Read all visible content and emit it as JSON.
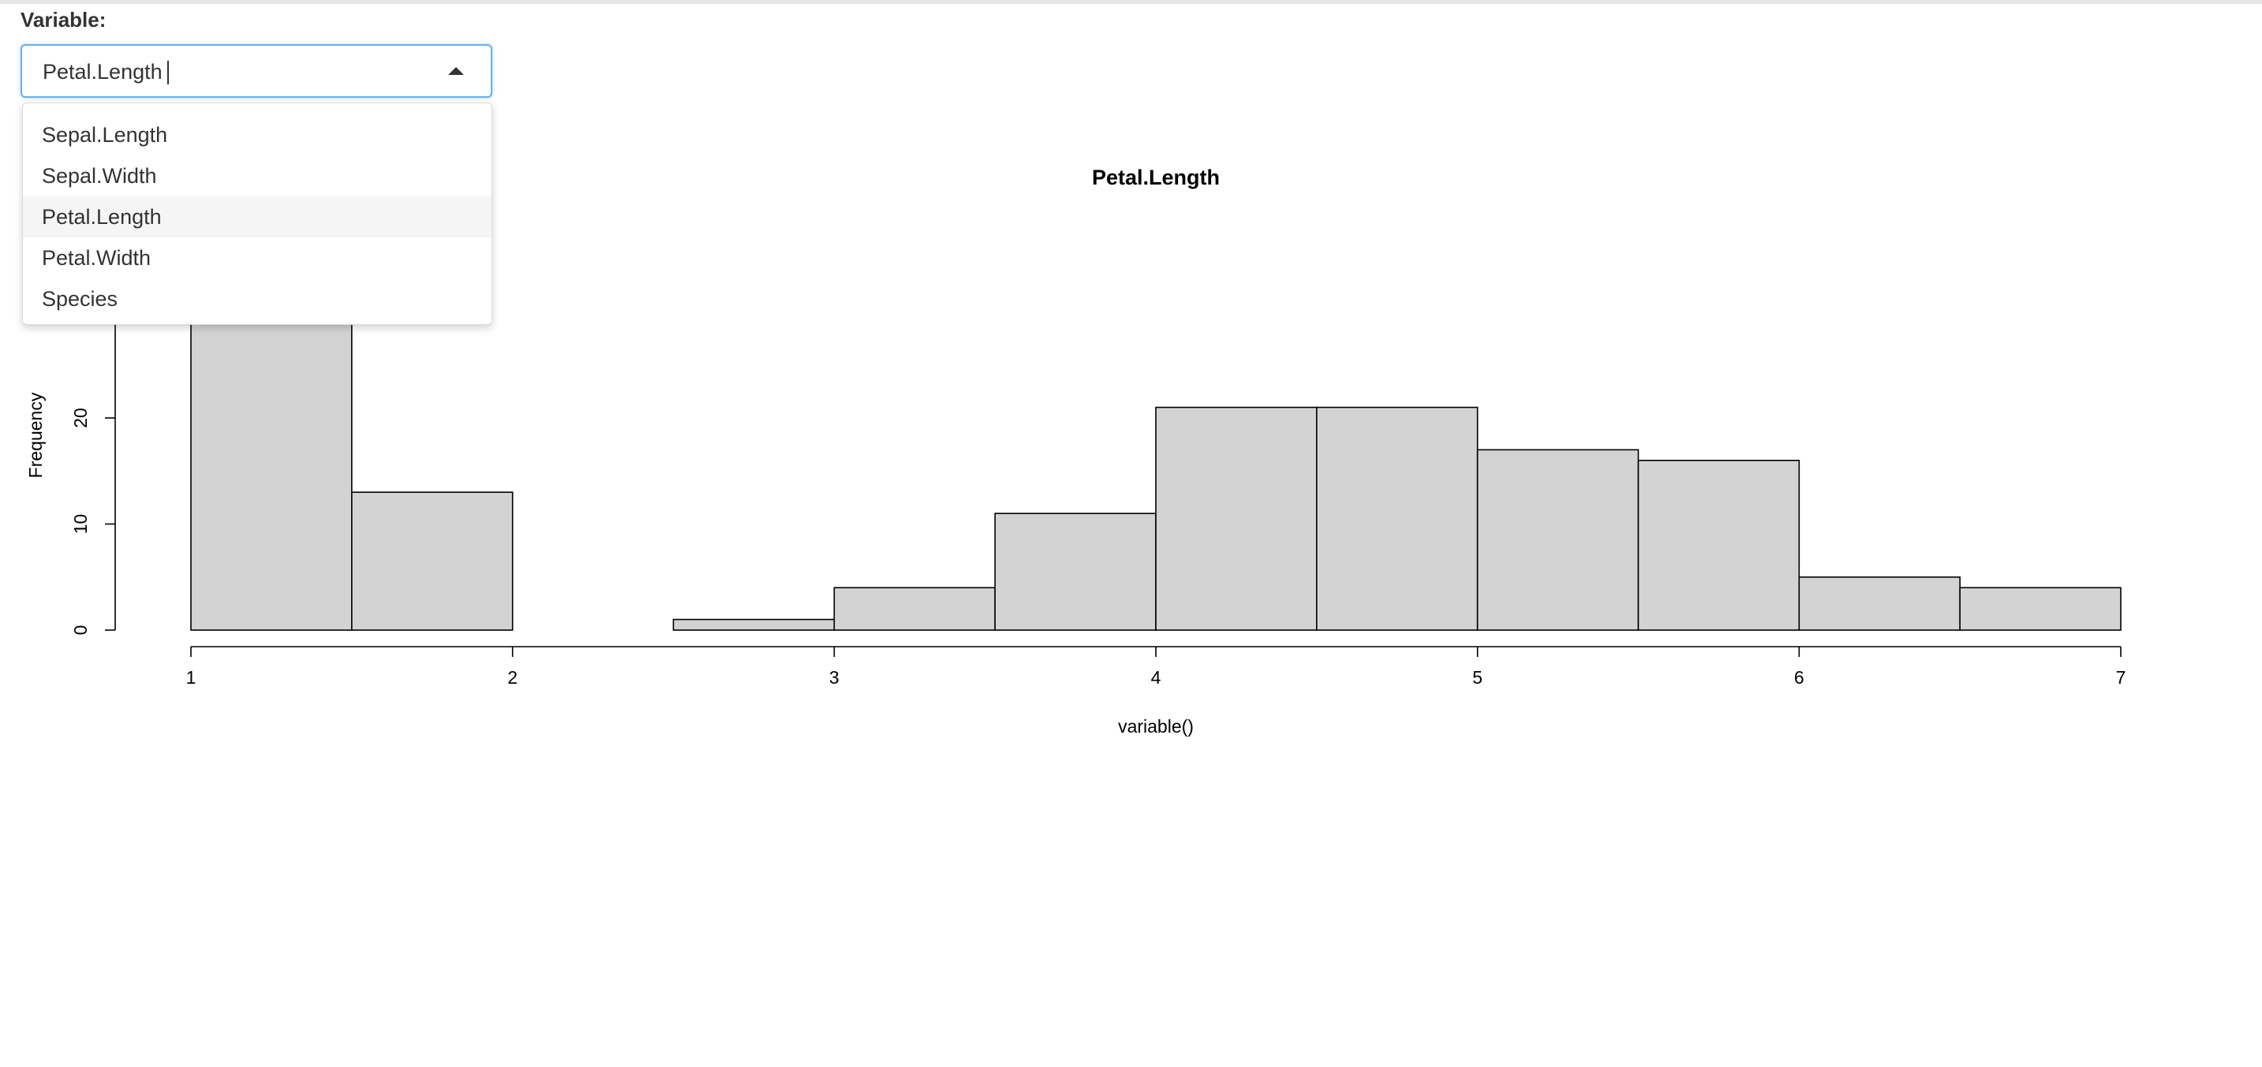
{
  "input": {
    "label": "Variable:",
    "value": "Petal.Length",
    "options": [
      "Sepal.Length",
      "Sepal.Width",
      "Petal.Length",
      "Petal.Width",
      "Species"
    ],
    "highlighted": "Petal.Length"
  },
  "colors": {
    "focus_border": "#66afe9",
    "bar_fill": "#d3d3d3",
    "bar_stroke": "#000000",
    "highlight": "#f5f5f5"
  },
  "chart_data": {
    "type": "bar",
    "title": "Petal.Length",
    "xlabel": "variable()",
    "ylabel": "Frequency",
    "bin_edges": [
      1,
      1.5,
      2,
      2.5,
      3,
      3.5,
      4,
      4.5,
      5,
      5.5,
      6,
      6.5,
      7
    ],
    "values": [
      37,
      13,
      0,
      1,
      4,
      11,
      21,
      21,
      17,
      16,
      5,
      4
    ],
    "x_ticks": [
      1,
      2,
      3,
      4,
      5,
      6,
      7
    ],
    "y_ticks": [
      0,
      10,
      20
    ],
    "xlim": [
      1,
      7
    ],
    "ylim": [
      0,
      37
    ],
    "grid": false
  }
}
